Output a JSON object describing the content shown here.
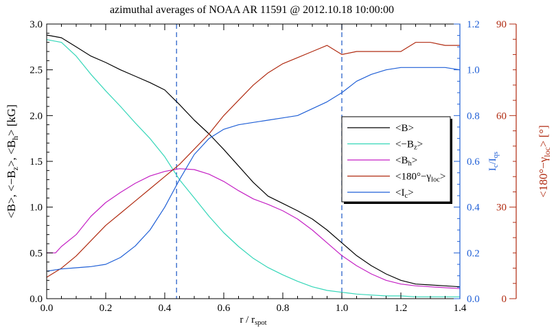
{
  "chart_data": {
    "type": "line",
    "title": "azimuthal averages of NOAA AR 11591 @ 2012.10.18 10:00:00",
    "xlabel": {
      "main": "r / r",
      "sub": "spot"
    },
    "xlim": [
      0.0,
      1.4
    ],
    "x_ticks": [
      "0.0",
      "0.2",
      "0.4",
      "0.6",
      "0.8",
      "1.0",
      "1.2",
      "1.4"
    ],
    "axes": {
      "left": {
        "label_parts": [
          "<B>, <−B",
          "z",
          ">, <B",
          "h",
          "> [kG]"
        ],
        "range": [
          0.0,
          3.0
        ],
        "ticks": [
          "0.0",
          "0.5",
          "1.0",
          "1.5",
          "2.0",
          "2.5",
          "3.0"
        ],
        "color": "#000000"
      },
      "right1": {
        "label_parts": [
          "I",
          "c",
          "/I",
          "qs"
        ],
        "range": [
          0.0,
          1.2
        ],
        "ticks": [
          "0.0",
          "0.2",
          "0.4",
          "0.6",
          "0.8",
          "1.0",
          "1.2"
        ],
        "color": "#1f5fd6"
      },
      "right2": {
        "label_parts": [
          "<180°−γ",
          "loc",
          "> [°]"
        ],
        "range": [
          0,
          90
        ],
        "ticks": [
          "0",
          "30",
          "60",
          "90"
        ],
        "color": "#b02a10"
      }
    },
    "vlines": [
      0.44,
      1.0
    ],
    "series": [
      {
        "name": "<B>",
        "legend_main": "<B>",
        "legend_sub": "",
        "legend_tail": "",
        "axis": "left",
        "color": "#000000",
        "x": [
          0.0,
          0.05,
          0.1,
          0.15,
          0.2,
          0.25,
          0.3,
          0.35,
          0.4,
          0.45,
          0.5,
          0.55,
          0.6,
          0.65,
          0.7,
          0.75,
          0.8,
          0.85,
          0.9,
          0.95,
          1.0,
          1.05,
          1.1,
          1.15,
          1.2,
          1.25,
          1.3,
          1.35,
          1.4
        ],
        "y": [
          2.88,
          2.85,
          2.75,
          2.65,
          2.58,
          2.5,
          2.43,
          2.36,
          2.28,
          2.12,
          1.95,
          1.8,
          1.63,
          1.45,
          1.27,
          1.12,
          1.04,
          0.96,
          0.87,
          0.75,
          0.61,
          0.47,
          0.36,
          0.27,
          0.2,
          0.16,
          0.15,
          0.14,
          0.13
        ]
      },
      {
        "name": "<−Bz>",
        "legend_main": "<−B",
        "legend_sub": "z",
        "legend_tail": ">",
        "axis": "left",
        "color": "#33d6b8",
        "x": [
          0.0,
          0.05,
          0.1,
          0.15,
          0.2,
          0.25,
          0.3,
          0.35,
          0.4,
          0.45,
          0.5,
          0.55,
          0.6,
          0.65,
          0.7,
          0.75,
          0.8,
          0.85,
          0.9,
          0.95,
          1.0,
          1.05,
          1.1,
          1.15,
          1.2,
          1.25,
          1.3,
          1.35,
          1.4
        ],
        "y": [
          2.83,
          2.8,
          2.65,
          2.45,
          2.27,
          2.1,
          1.92,
          1.75,
          1.55,
          1.3,
          1.1,
          0.9,
          0.72,
          0.57,
          0.44,
          0.34,
          0.26,
          0.19,
          0.13,
          0.09,
          0.07,
          0.05,
          0.04,
          0.03,
          0.03,
          0.02,
          0.02,
          0.02,
          0.02
        ]
      },
      {
        "name": "<Bh>",
        "legend_main": "<B",
        "legend_sub": "h",
        "legend_tail": ">",
        "axis": "left",
        "color": "#c41fc4",
        "x": [
          0.0,
          0.03,
          0.05,
          0.1,
          0.15,
          0.2,
          0.25,
          0.3,
          0.35,
          0.4,
          0.45,
          0.5,
          0.55,
          0.6,
          0.65,
          0.7,
          0.75,
          0.8,
          0.85,
          0.9,
          0.95,
          1.0,
          1.05,
          1.1,
          1.15,
          1.2,
          1.25,
          1.3,
          1.35,
          1.4
        ],
        "y": [
          0.5,
          0.5,
          0.57,
          0.7,
          0.9,
          1.05,
          1.16,
          1.26,
          1.34,
          1.39,
          1.42,
          1.41,
          1.36,
          1.28,
          1.18,
          1.09,
          1.03,
          0.96,
          0.87,
          0.75,
          0.61,
          0.47,
          0.36,
          0.27,
          0.2,
          0.16,
          0.14,
          0.13,
          0.12,
          0.11
        ]
      },
      {
        "name": "<180°−γloc>",
        "legend_main": "<180°−γ",
        "legend_sub": "loc",
        "legend_tail": ">",
        "axis": "right2",
        "color": "#b02a10",
        "x": [
          0.0,
          0.05,
          0.1,
          0.15,
          0.2,
          0.25,
          0.3,
          0.35,
          0.4,
          0.45,
          0.5,
          0.55,
          0.6,
          0.65,
          0.7,
          0.75,
          0.8,
          0.85,
          0.9,
          0.95,
          1.0,
          1.05,
          1.1,
          1.15,
          1.2,
          1.25,
          1.3,
          1.35,
          1.4
        ],
        "y": [
          7,
          10,
          14,
          19,
          24,
          28,
          32,
          36,
          40,
          44,
          49,
          54,
          60,
          65,
          70,
          74,
          77,
          79,
          81,
          83,
          80,
          81,
          81,
          81,
          81,
          84,
          84,
          83,
          83
        ]
      },
      {
        "name": "<Ic>",
        "legend_main": "<I",
        "legend_sub": "c",
        "legend_tail": ">",
        "axis": "right1",
        "color": "#1f5fd6",
        "x": [
          0.0,
          0.05,
          0.1,
          0.15,
          0.2,
          0.25,
          0.3,
          0.35,
          0.4,
          0.45,
          0.5,
          0.55,
          0.6,
          0.65,
          0.7,
          0.75,
          0.8,
          0.85,
          0.9,
          0.95,
          1.0,
          1.05,
          1.1,
          1.15,
          1.2,
          1.25,
          1.3,
          1.35,
          1.4
        ],
        "y": [
          0.12,
          0.13,
          0.135,
          0.14,
          0.15,
          0.18,
          0.23,
          0.3,
          0.4,
          0.52,
          0.63,
          0.7,
          0.74,
          0.76,
          0.77,
          0.78,
          0.79,
          0.8,
          0.83,
          0.86,
          0.9,
          0.95,
          0.98,
          1.0,
          1.01,
          1.01,
          1.01,
          1.01,
          1.0
        ]
      }
    ],
    "legend_placement": "middle-right"
  }
}
